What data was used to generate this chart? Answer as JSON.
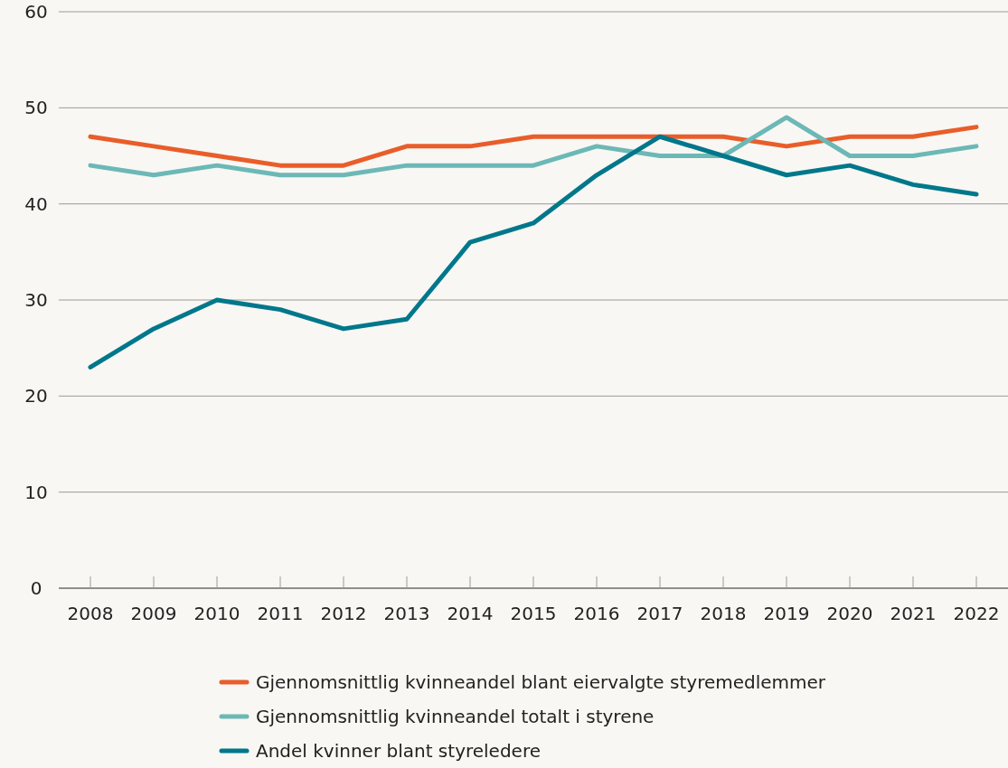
{
  "chart_data": {
    "type": "line",
    "categories": [
      "2008",
      "2009",
      "2010",
      "2011",
      "2012",
      "2013",
      "2014",
      "2015",
      "2016",
      "2017",
      "2018",
      "2019",
      "2020",
      "2021",
      "2022"
    ],
    "series": [
      {
        "name": "Gjennomsnittlig kvinneandel blant eiervalgte styremedlemmer",
        "color": "#e95d2a",
        "values": [
          47,
          46,
          45,
          44,
          44,
          46,
          46,
          47,
          47,
          47,
          47,
          46,
          47,
          47,
          48
        ]
      },
      {
        "name": "Gjennomsnittlig kvinneandel totalt i styrene",
        "color": "#6cb8b6",
        "values": [
          44,
          43,
          44,
          43,
          43,
          44,
          44,
          44,
          46,
          45,
          45,
          49,
          45,
          45,
          46
        ]
      },
      {
        "name": "Andel kvinner blant styreledere",
        "color": "#00778b",
        "values": [
          23,
          27,
          30,
          29,
          27,
          28,
          36,
          38,
          43,
          47,
          45,
          43,
          44,
          42,
          41
        ]
      }
    ],
    "ylim": [
      0,
      60
    ],
    "yticks": [
      0,
      10,
      20,
      30,
      40,
      50,
      60
    ],
    "grid": "y",
    "legend": "bottom",
    "marker": "none",
    "line_style": "solid"
  }
}
